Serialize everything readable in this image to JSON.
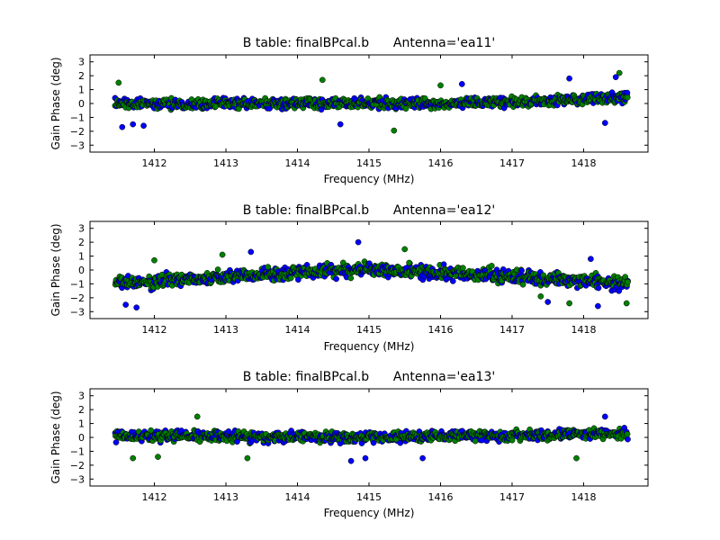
{
  "chart_data": [
    {
      "type": "scatter",
      "title": "B table: finalBPcal.b      Antenna='ea11'",
      "xlabel": "Frequency (MHz)",
      "ylabel": "Gain Phase (deg)",
      "xlim": [
        1411.1,
        1418.9
      ],
      "ylim": [
        -3.5,
        3.5
      ],
      "xticks": [
        1412,
        1413,
        1414,
        1415,
        1416,
        1417,
        1418
      ],
      "yticks": [
        -3,
        -2,
        -1,
        0,
        1,
        2,
        3
      ],
      "x_range": [
        1411.45,
        1418.62
      ],
      "grid": false,
      "series": [
        {
          "color": "#0000ff",
          "trend": [
            [
              1411.45,
              0.0
            ],
            [
              1414.0,
              0.0
            ],
            [
              1416.0,
              0.0
            ],
            [
              1417.2,
              0.1
            ],
            [
              1418.62,
              0.5
            ]
          ],
          "spread": 0.55,
          "outliers": [
            [
              1411.55,
              -1.7
            ],
            [
              1411.7,
              -1.5
            ],
            [
              1411.85,
              -1.6
            ],
            [
              1414.6,
              -1.5
            ],
            [
              1416.3,
              1.4
            ],
            [
              1417.8,
              1.8
            ],
            [
              1418.3,
              -1.4
            ],
            [
              1418.45,
              1.9
            ]
          ]
        },
        {
          "color": "#008000",
          "trend": [
            [
              1411.45,
              0.0
            ],
            [
              1414.0,
              0.0
            ],
            [
              1416.0,
              0.0
            ],
            [
              1417.2,
              0.1
            ],
            [
              1418.62,
              0.5
            ]
          ],
          "spread": 0.55,
          "outliers": [
            [
              1414.35,
              1.7
            ],
            [
              1415.35,
              -1.95
            ],
            [
              1418.5,
              2.2
            ],
            [
              1411.5,
              1.5
            ],
            [
              1416.0,
              1.3
            ]
          ]
        }
      ]
    },
    {
      "type": "scatter",
      "title": "B table: finalBPcal.b      Antenna='ea12'",
      "xlabel": "Frequency (MHz)",
      "ylabel": "Gain Phase (deg)",
      "xlim": [
        1411.1,
        1418.9
      ],
      "ylim": [
        -3.5,
        3.5
      ],
      "xticks": [
        1412,
        1413,
        1414,
        1415,
        1416,
        1417,
        1418
      ],
      "yticks": [
        -3,
        -2,
        -1,
        0,
        1,
        2,
        3
      ],
      "x_range": [
        1411.45,
        1418.62
      ],
      "grid": false,
      "series": [
        {
          "color": "#0000ff",
          "trend": [
            [
              1411.45,
              -1.0
            ],
            [
              1413.0,
              -0.5
            ],
            [
              1415.0,
              0.1
            ],
            [
              1416.5,
              -0.3
            ],
            [
              1418.62,
              -1.0
            ]
          ],
          "spread": 0.7,
          "outliers": [
            [
              1411.6,
              -2.5
            ],
            [
              1411.75,
              -2.7
            ],
            [
              1414.85,
              2.0
            ],
            [
              1413.35,
              1.3
            ],
            [
              1417.5,
              -2.3
            ],
            [
              1418.2,
              -2.6
            ],
            [
              1418.1,
              0.8
            ]
          ]
        },
        {
          "color": "#008000",
          "trend": [
            [
              1411.45,
              -1.0
            ],
            [
              1413.0,
              -0.5
            ],
            [
              1415.0,
              0.1
            ],
            [
              1416.5,
              -0.3
            ],
            [
              1418.62,
              -1.0
            ]
          ],
          "spread": 0.7,
          "outliers": [
            [
              1412.0,
              0.7
            ],
            [
              1412.95,
              1.1
            ],
            [
              1415.5,
              1.5
            ],
            [
              1417.4,
              -1.9
            ],
            [
              1417.8,
              -2.4
            ],
            [
              1418.6,
              -2.4
            ]
          ]
        }
      ]
    },
    {
      "type": "scatter",
      "title": "B table: finalBPcal.b      Antenna='ea13'",
      "xlabel": "Frequency (MHz)",
      "ylabel": "Gain Phase (deg)",
      "xlim": [
        1411.1,
        1418.9
      ],
      "ylim": [
        -3.5,
        3.5
      ],
      "xticks": [
        1412,
        1413,
        1414,
        1415,
        1416,
        1417,
        1418
      ],
      "yticks": [
        -3,
        -2,
        -1,
        0,
        1,
        2,
        3
      ],
      "x_range": [
        1411.45,
        1418.62
      ],
      "grid": false,
      "series": [
        {
          "color": "#0000ff",
          "trend": [
            [
              1411.45,
              0.1
            ],
            [
              1415.0,
              0.0
            ],
            [
              1418.62,
              0.3
            ]
          ],
          "spread": 0.55,
          "outliers": [
            [
              1414.75,
              -1.7
            ],
            [
              1414.95,
              -1.5
            ],
            [
              1415.75,
              -1.5
            ],
            [
              1418.3,
              1.5
            ]
          ]
        },
        {
          "color": "#008000",
          "trend": [
            [
              1411.45,
              0.1
            ],
            [
              1415.0,
              0.0
            ],
            [
              1418.62,
              0.3
            ]
          ],
          "spread": 0.55,
          "outliers": [
            [
              1411.7,
              -1.5
            ],
            [
              1412.05,
              -1.4
            ],
            [
              1413.3,
              -1.5
            ],
            [
              1417.9,
              -1.5
            ],
            [
              1412.6,
              1.5
            ]
          ]
        }
      ]
    }
  ]
}
